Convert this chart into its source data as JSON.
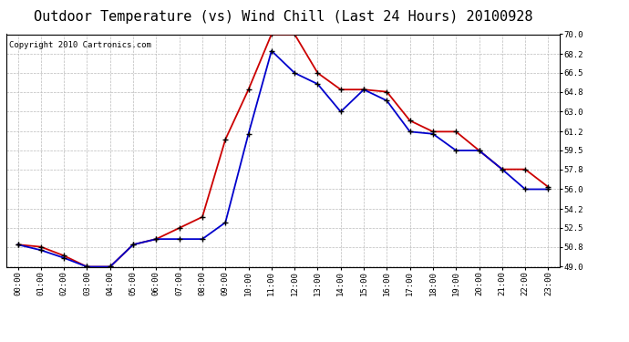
{
  "title": "Outdoor Temperature (vs) Wind Chill (Last 24 Hours) 20100928",
  "copyright": "Copyright 2010 Cartronics.com",
  "hours": [
    "00:00",
    "01:00",
    "02:00",
    "03:00",
    "04:00",
    "05:00",
    "06:00",
    "07:00",
    "08:00",
    "09:00",
    "10:00",
    "11:00",
    "12:00",
    "13:00",
    "14:00",
    "15:00",
    "16:00",
    "17:00",
    "18:00",
    "19:00",
    "20:00",
    "21:00",
    "22:00",
    "23:00"
  ],
  "temp": [
    51.0,
    50.8,
    50.0,
    49.0,
    49.0,
    51.0,
    51.5,
    52.5,
    53.5,
    60.5,
    65.0,
    70.0,
    70.0,
    66.5,
    65.0,
    65.0,
    64.8,
    62.2,
    61.2,
    61.2,
    59.5,
    57.8,
    57.8,
    56.2
  ],
  "wind_chill": [
    51.0,
    50.5,
    49.8,
    49.0,
    49.0,
    51.0,
    51.5,
    51.5,
    51.5,
    53.0,
    61.0,
    68.5,
    66.5,
    65.5,
    63.0,
    65.0,
    64.0,
    61.2,
    61.0,
    59.5,
    59.5,
    57.8,
    56.0,
    56.0
  ],
  "temp_color": "#cc0000",
  "wind_chill_color": "#0000cc",
  "bg_color": "#ffffff",
  "grid_color": "#bbbbbb",
  "ylim": [
    49.0,
    70.0
  ],
  "yticks": [
    49.0,
    50.8,
    52.5,
    54.2,
    56.0,
    57.8,
    59.5,
    61.2,
    63.0,
    64.8,
    66.5,
    68.2,
    70.0
  ],
  "title_fontsize": 11,
  "copyright_fontsize": 6.5,
  "markersize": 4,
  "linewidth": 1.3
}
